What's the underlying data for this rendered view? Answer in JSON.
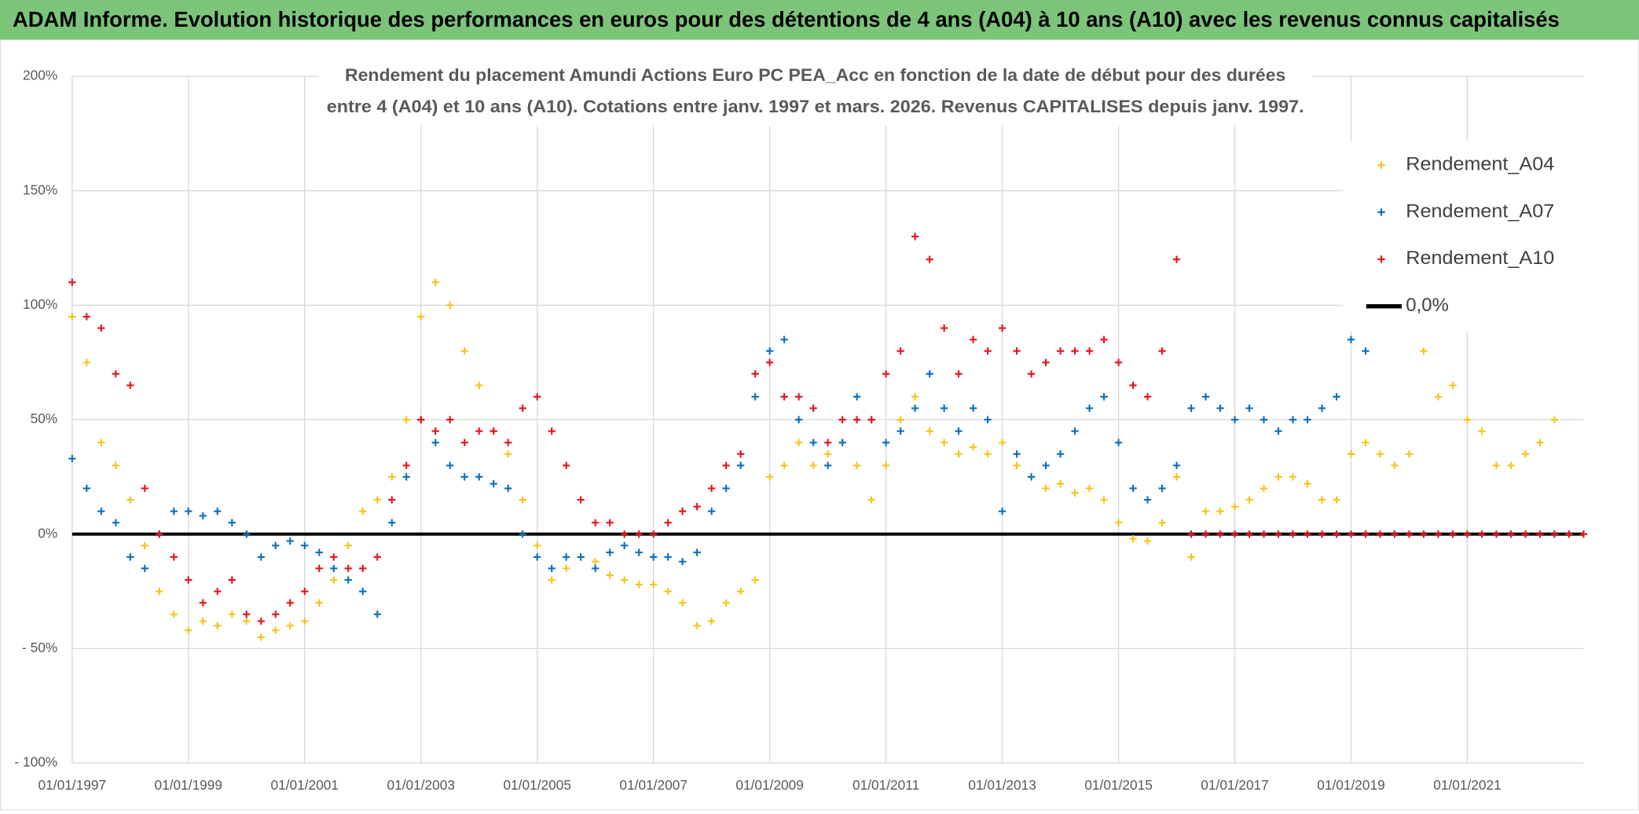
{
  "chart_data": {
    "type": "scatter",
    "title": "ADAM Informe. Evolution historique des performances en euros pour des détentions de 4 ans (A04) à 10 ans (A10) avec les revenus connus capitalisés",
    "subtitle": [
      "Rendement du placement Amundi Actions Euro PC PEA_Acc en fonction de la date de début pour des durées",
      "entre 4 (A04) et 10 ans (A10). Cotations entre janv. 1997 et mars. 2026. Revenus CAPITALISES depuis janv. 1997."
    ],
    "xlim": [
      1997,
      2023
    ],
    "xticks": [
      {
        "value": 1997,
        "label": "01/01/1997"
      },
      {
        "value": 1999,
        "label": "01/01/1999"
      },
      {
        "value": 2001,
        "label": "01/01/2001"
      },
      {
        "value": 2003,
        "label": "01/01/2003"
      },
      {
        "value": 2005,
        "label": "01/01/2005"
      },
      {
        "value": 2007,
        "label": "01/01/2007"
      },
      {
        "value": 2009,
        "label": "01/01/2009"
      },
      {
        "value": 2011,
        "label": "01/01/2011"
      },
      {
        "value": 2013,
        "label": "01/01/2013"
      },
      {
        "value": 2015,
        "label": "01/01/2015"
      },
      {
        "value": 2017,
        "label": "01/01/2017"
      },
      {
        "value": 2019,
        "label": "01/01/2019"
      },
      {
        "value": 2021,
        "label": "01/01/2021"
      }
    ],
    "ylim": [
      -100,
      200
    ],
    "yticks": [
      {
        "value": 200,
        "label": "200%"
      },
      {
        "value": 150,
        "label": "150%"
      },
      {
        "value": 100,
        "label": "100%"
      },
      {
        "value": 50,
        "label": "50%"
      },
      {
        "value": 0,
        "label": "0%"
      },
      {
        "value": -50,
        "label": "- 50%"
      },
      {
        "value": -100,
        "label": "- 100%"
      }
    ],
    "grid": true,
    "legend": "upper right",
    "x": [
      1997,
      1997.25,
      1997.5,
      1997.75,
      1998,
      1998.25,
      1998.5,
      1998.75,
      1999,
      1999.25,
      1999.5,
      1999.75,
      2000,
      2000.25,
      2000.5,
      2000.75,
      2001,
      2001.25,
      2001.5,
      2001.75,
      2002,
      2002.25,
      2002.5,
      2002.75,
      2003,
      2003.25,
      2003.5,
      2003.75,
      2004,
      2004.25,
      2004.5,
      2004.75,
      2005,
      2005.25,
      2005.5,
      2005.75,
      2006,
      2006.25,
      2006.5,
      2006.75,
      2007,
      2007.25,
      2007.5,
      2007.75,
      2008,
      2008.25,
      2008.5,
      2008.75,
      2009,
      2009.25,
      2009.5,
      2009.75,
      2010,
      2010.25,
      2010.5,
      2010.75,
      2011,
      2011.25,
      2011.5,
      2011.75,
      2012,
      2012.25,
      2012.5,
      2012.75,
      2013,
      2013.25,
      2013.5,
      2013.75,
      2014,
      2014.25,
      2014.5,
      2014.75,
      2015,
      2015.25,
      2015.5,
      2015.75,
      2016,
      2016.25,
      2016.5,
      2016.75,
      2017,
      2017.25,
      2017.5,
      2017.75,
      2018,
      2018.25,
      2018.5,
      2018.75,
      2019,
      2019.25,
      2019.5,
      2019.75,
      2020,
      2020.25,
      2020.5,
      2020.75,
      2021,
      2021.25,
      2021.5,
      2021.75,
      2022,
      2022.25,
      2022.5,
      2022.75,
      2023
    ],
    "series": [
      {
        "name": "Rendement_A04",
        "color": "#f5c518",
        "values": [
          95,
          75,
          40,
          30,
          15,
          -5,
          -25,
          -35,
          -42,
          -38,
          -40,
          -35,
          -38,
          -45,
          -42,
          -40,
          -38,
          -30,
          -20,
          -5,
          10,
          15,
          25,
          50,
          95,
          110,
          100,
          80,
          65,
          45,
          35,
          15,
          -5,
          -20,
          -15,
          -10,
          -12,
          -18,
          -20,
          -22,
          -22,
          -25,
          -30,
          -40,
          -38,
          -30,
          -25,
          -20,
          25,
          30,
          40,
          30,
          35,
          40,
          30,
          15,
          30,
          50,
          60,
          45,
          40,
          35,
          38,
          35,
          40,
          30,
          25,
          20,
          22,
          18,
          20,
          15,
          5,
          -2,
          -3,
          5,
          25,
          -10,
          10,
          10,
          12,
          15,
          20,
          25,
          25,
          22,
          15,
          15,
          35,
          40,
          35,
          30,
          35,
          80,
          60,
          65,
          50,
          45,
          30,
          30,
          35,
          40,
          50,
          0,
          0
        ]
      },
      {
        "name": "Rendement_A07",
        "color": "#0a70c0",
        "values": [
          33,
          20,
          10,
          5,
          -10,
          -15,
          0,
          10,
          10,
          8,
          10,
          5,
          0,
          -10,
          -5,
          -3,
          -5,
          -8,
          -15,
          -20,
          -25,
          -35,
          5,
          25,
          50,
          40,
          30,
          25,
          25,
          22,
          20,
          0,
          -10,
          -15,
          -10,
          -10,
          -15,
          -8,
          -5,
          -8,
          -10,
          -10,
          -12,
          -8,
          10,
          20,
          30,
          60,
          80,
          85,
          50,
          40,
          30,
          40,
          60,
          50,
          40,
          45,
          55,
          70,
          55,
          45,
          55,
          50,
          10,
          35,
          25,
          30,
          35,
          45,
          55,
          60,
          40,
          20,
          15,
          20,
          30,
          55,
          60,
          55,
          50,
          55,
          50,
          45,
          50,
          50,
          55,
          60,
          85,
          80,
          null,
          null,
          null,
          null,
          null,
          null,
          null,
          null,
          null,
          null,
          null,
          null,
          null,
          null,
          null
        ]
      },
      {
        "name": "Rendement_A10",
        "color": "#e8141e",
        "values": [
          110,
          95,
          90,
          70,
          65,
          20,
          0,
          -10,
          -20,
          -30,
          -25,
          -20,
          -35,
          -38,
          -35,
          -30,
          -25,
          -15,
          -10,
          -15,
          -15,
          -10,
          15,
          30,
          50,
          45,
          50,
          40,
          45,
          45,
          40,
          55,
          60,
          45,
          30,
          15,
          5,
          5,
          0,
          0,
          0,
          5,
          10,
          12,
          20,
          30,
          35,
          70,
          75,
          60,
          60,
          55,
          40,
          50,
          50,
          50,
          70,
          80,
          130,
          120,
          90,
          70,
          85,
          80,
          90,
          80,
          70,
          75,
          80,
          80,
          80,
          85,
          75,
          65,
          60,
          80,
          120,
          0,
          0,
          0,
          0,
          0,
          0,
          0,
          0,
          0,
          0,
          0,
          0,
          0,
          0,
          0,
          0,
          0,
          0,
          0,
          0,
          0,
          0,
          0,
          0,
          0,
          0,
          0,
          0
        ]
      }
    ],
    "reference_line": {
      "name": "0,0%",
      "value": 0,
      "color": "#000000"
    }
  }
}
